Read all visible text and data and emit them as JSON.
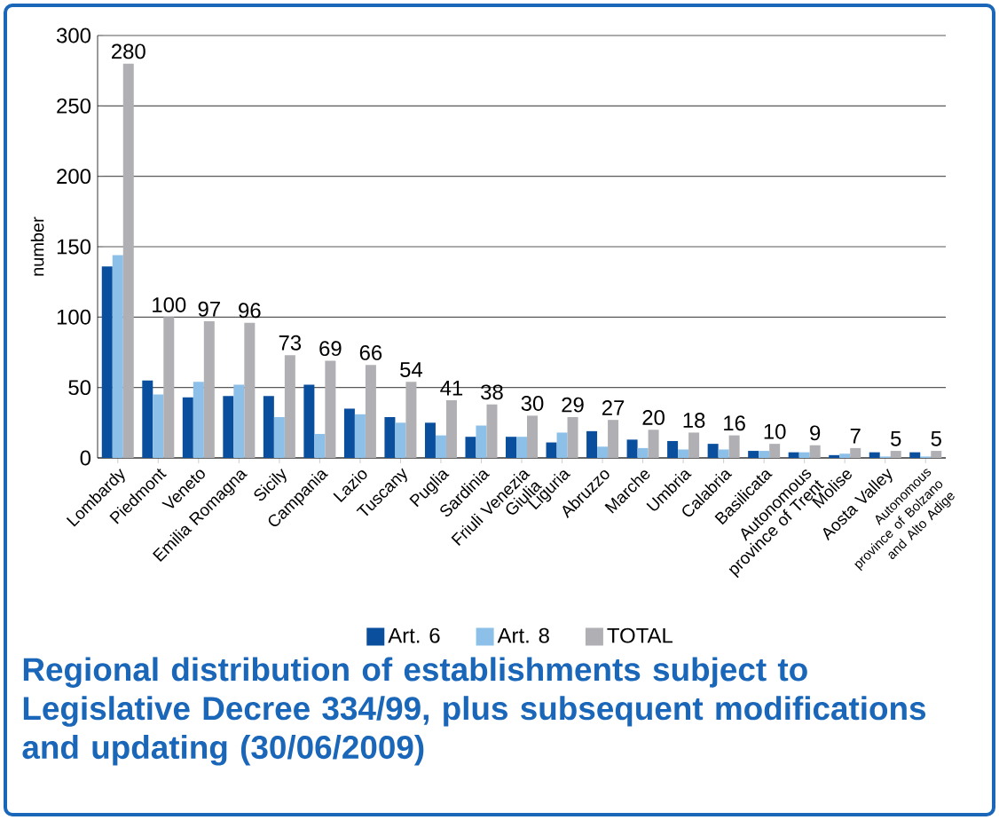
{
  "chart_data": {
    "type": "bar",
    "title": "Regional distribution of establishments subject to Legislative Decree 334/99, plus subsequent modifications and updating (30/06/2009)",
    "ylabel": "number",
    "categories": [
      "Lombardy",
      "Piedmont",
      "Veneto",
      "Emilia Romagna",
      "Sicily",
      "Campania",
      "Lazio",
      "Tuscany",
      "Puglia",
      "Sardinia",
      "Friuli Venezia Giulia",
      "Liguria",
      "Abruzzo",
      "Marche",
      "Umbria",
      "Calabria",
      "Basilicata",
      "Autonomous province of Trent",
      "Molise",
      "Aosta Valley",
      "Autonomous province of Bolzano and Alto Adige"
    ],
    "series": [
      {
        "name": "Art. 6",
        "color": "#0a4f9e",
        "values": [
          136,
          55,
          43,
          44,
          44,
          52,
          35,
          29,
          25,
          15,
          15,
          11,
          19,
          13,
          12,
          10,
          5,
          4,
          2,
          4,
          4
        ]
      },
      {
        "name": "Art. 8",
        "color": "#8dc0e8",
        "values": [
          144,
          45,
          54,
          52,
          29,
          17,
          31,
          25,
          16,
          23,
          15,
          18,
          8,
          7,
          6,
          6,
          5,
          4,
          3,
          1,
          1
        ]
      },
      {
        "name": "TOTAL",
        "color": "#b0b0b4",
        "values": [
          280,
          100,
          97,
          96,
          73,
          69,
          66,
          54,
          41,
          38,
          30,
          29,
          27,
          20,
          18,
          16,
          10,
          9,
          7,
          5,
          5
        ],
        "value_labels": [
          "280",
          "100",
          "97",
          "96",
          "73",
          "69",
          "66",
          "54",
          "41",
          "38",
          "30",
          "29",
          "27",
          "20",
          "18",
          "16",
          "10",
          "9",
          "7",
          "5",
          "5"
        ]
      }
    ],
    "ylim": [
      0,
      300
    ],
    "yticks": [
      0,
      50,
      100,
      150,
      200,
      250,
      300
    ],
    "grid": "y",
    "legend": "bottom"
  }
}
